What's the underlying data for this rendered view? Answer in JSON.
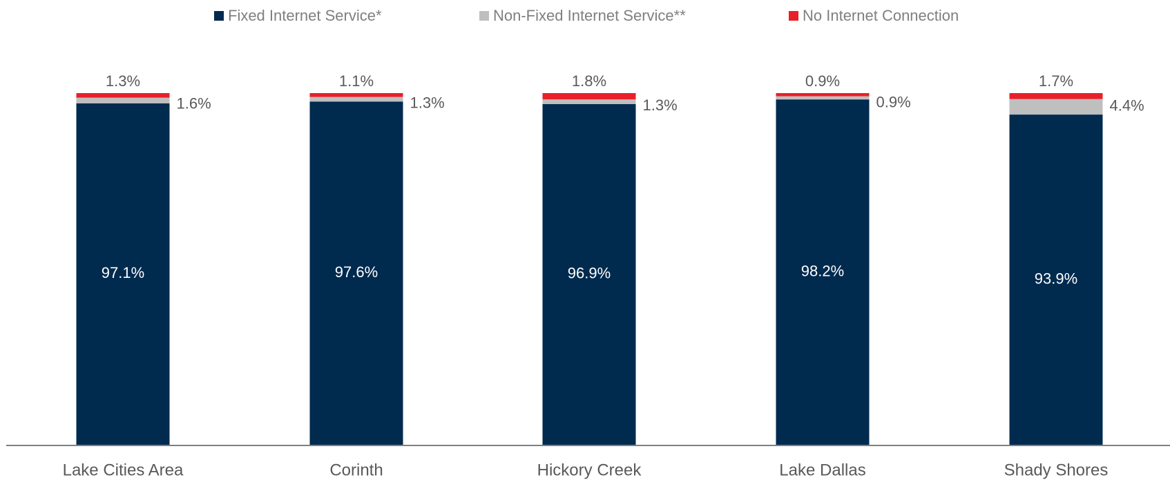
{
  "chart_data": {
    "type": "stacked_bar",
    "categories": [
      "Lake Cities Area",
      "Corinth",
      "Hickory Creek",
      "Lake Dallas",
      "Shady Shores"
    ],
    "series": [
      {
        "name": "Fixed Internet Service*",
        "color": "#002a4e",
        "values": [
          97.1,
          97.6,
          96.9,
          98.2,
          93.9
        ],
        "value_labels": [
          "97.1%",
          "97.6%",
          "96.9%",
          "98.2%",
          "93.9%"
        ]
      },
      {
        "name": "Non-Fixed Internet Service**",
        "color": "#bfbfbf",
        "values": [
          1.6,
          1.3,
          1.3,
          0.9,
          4.4
        ],
        "value_labels": [
          "1.6%",
          "1.3%",
          "1.3%",
          "0.9%",
          "4.4%"
        ]
      },
      {
        "name": "No Internet Connection",
        "color": "#e8202a",
        "values": [
          1.3,
          1.1,
          1.8,
          0.9,
          1.7
        ],
        "value_labels": [
          "1.3%",
          "1.1%",
          "1.8%",
          "0.9%",
          "1.7%"
        ]
      }
    ],
    "ylim": [
      0,
      100
    ],
    "legend": "top"
  }
}
